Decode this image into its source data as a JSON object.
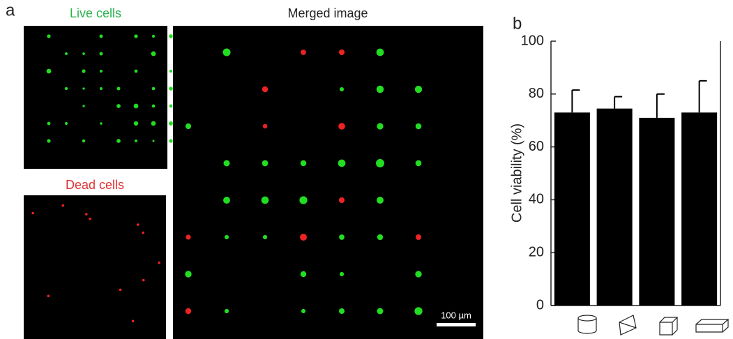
{
  "panel_a": {
    "label": "a",
    "live_title": "Live cells",
    "dead_title": "Dead cells",
    "merged_title": "Merged image",
    "scale_bar": "100 µm"
  },
  "chart_data": {
    "type": "bar",
    "panel_label": "b",
    "y_label": "Cell viability (%)",
    "categories": [
      null,
      null,
      null,
      null
    ],
    "values": [
      73,
      74.5,
      71,
      73
    ],
    "errors": [
      8.5,
      4.5,
      9,
      12
    ],
    "color": "#000000",
    "ylim": [
      0,
      100
    ],
    "yticks": [
      0,
      20,
      40,
      60,
      80,
      100
    ],
    "grid": false
  }
}
